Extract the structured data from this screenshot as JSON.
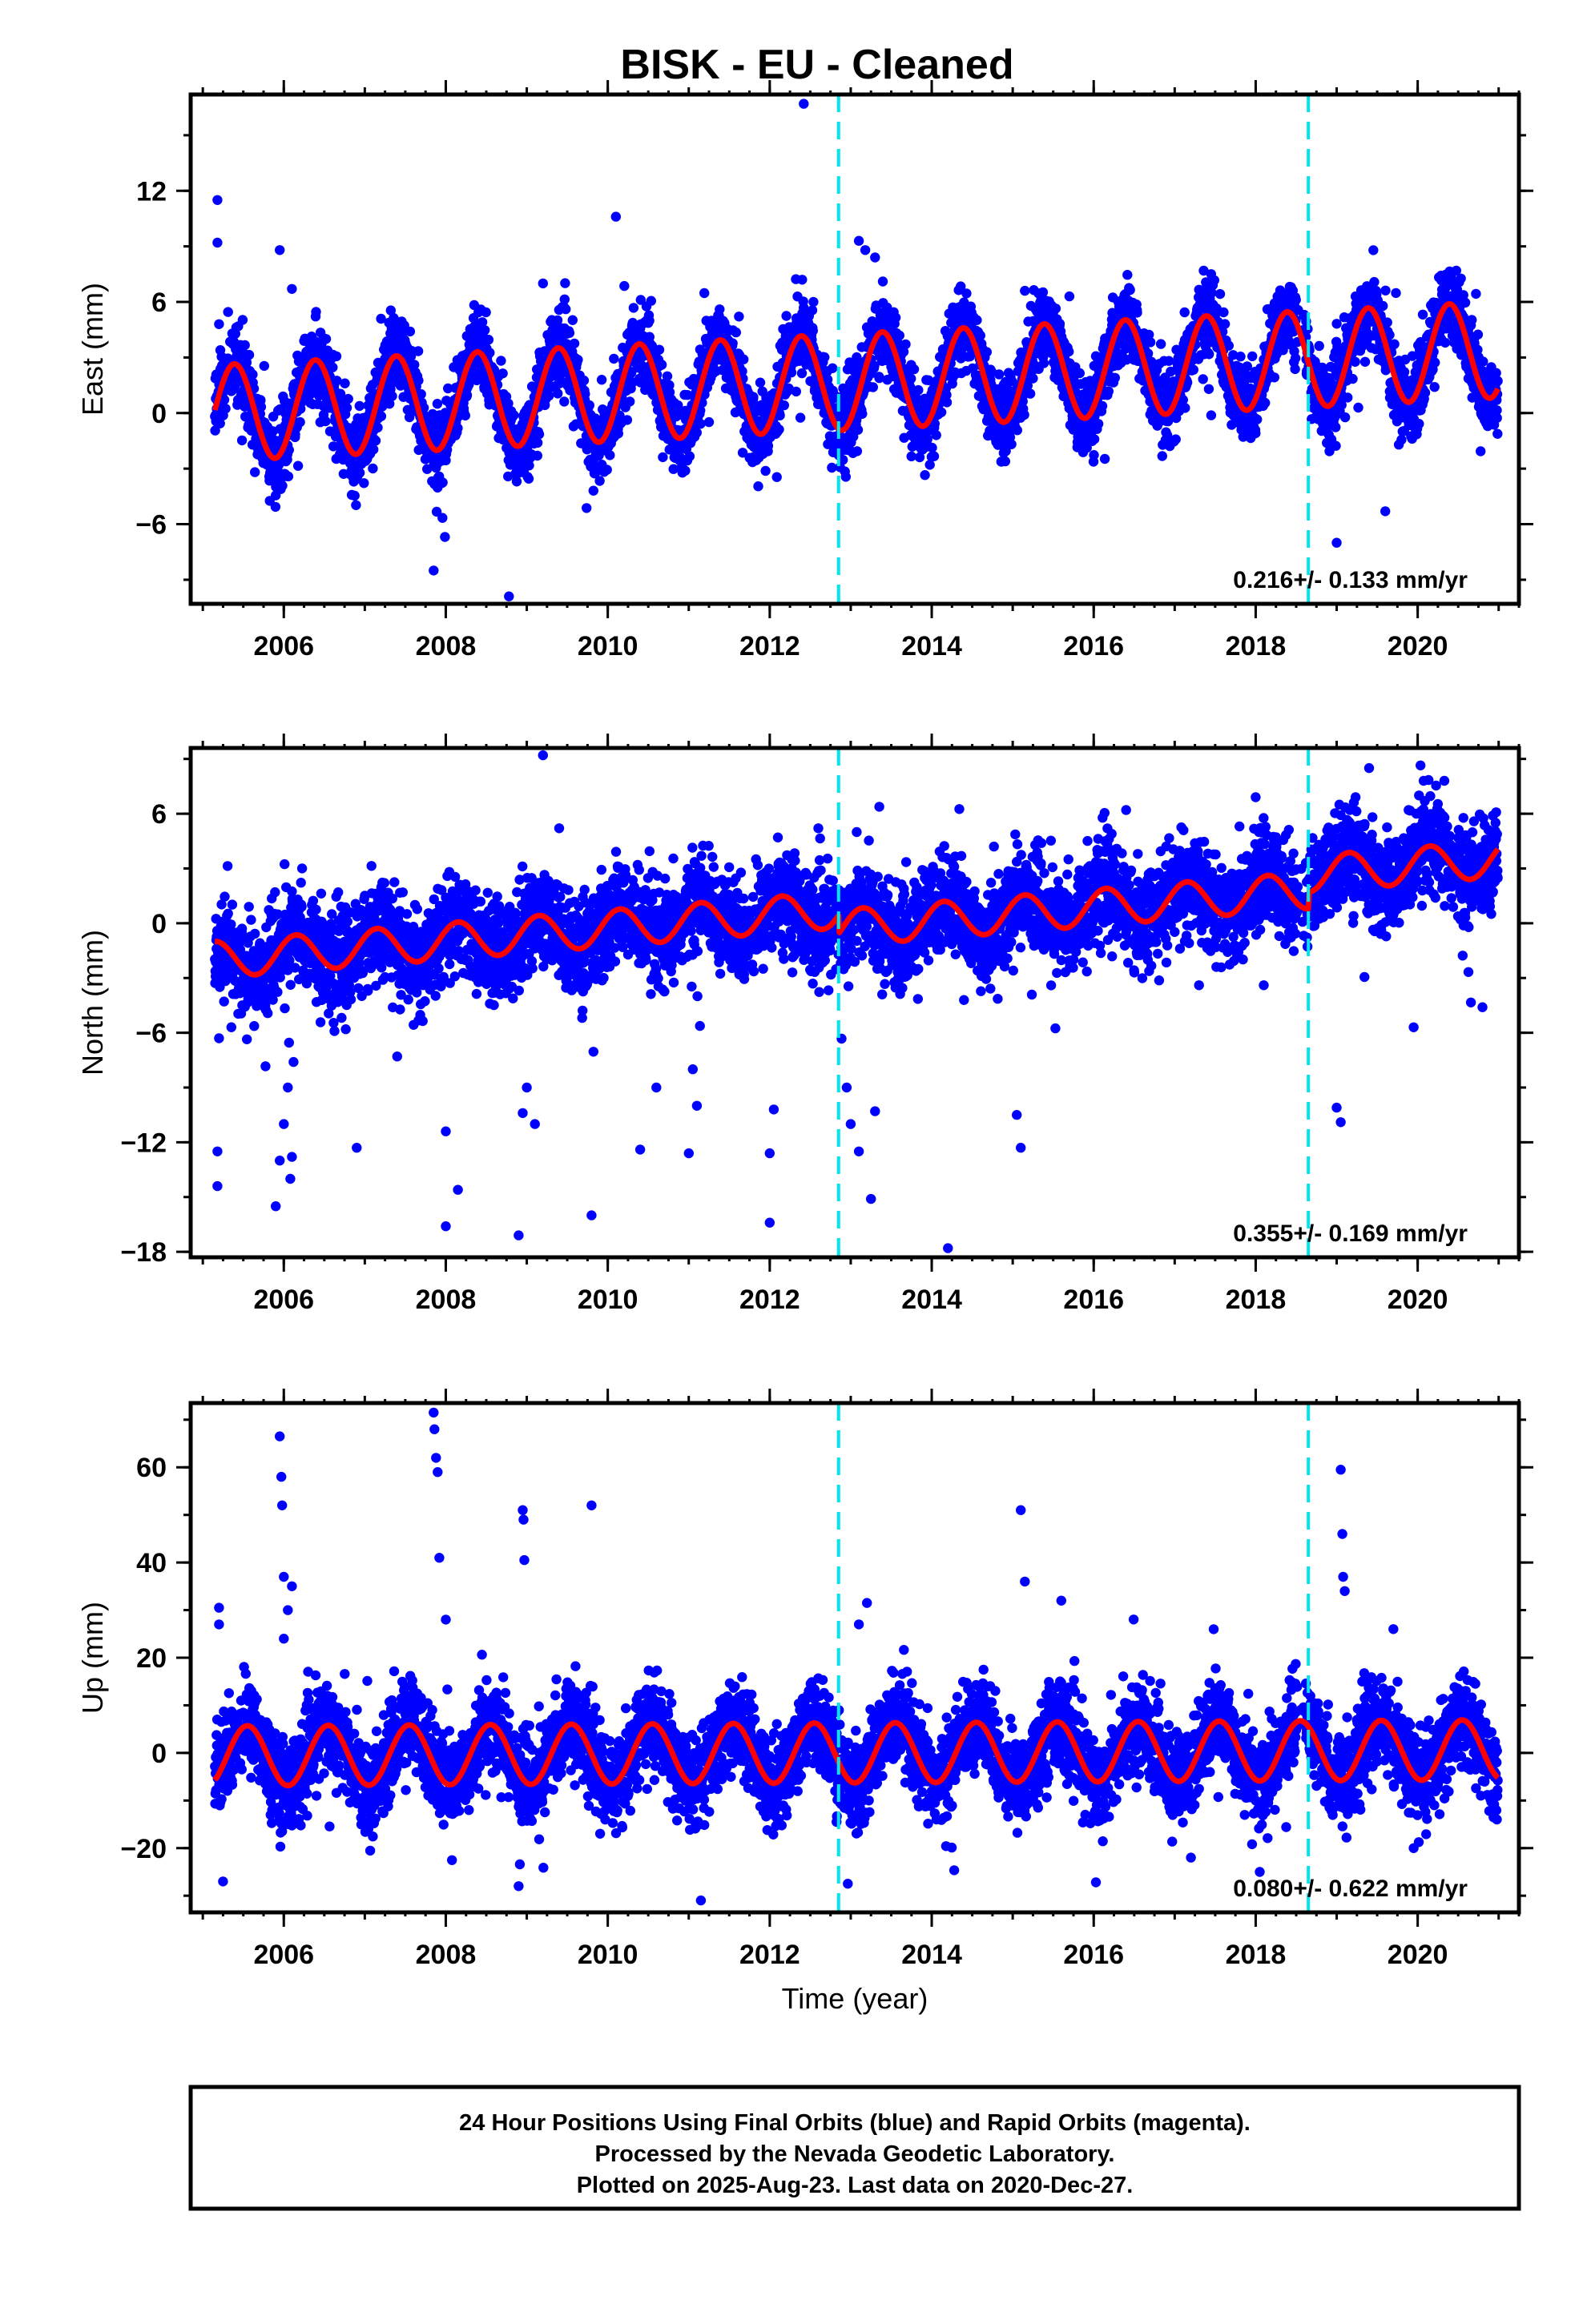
{
  "colors": {
    "final_orbits": "#0000ff",
    "model_fit": "#ff0000",
    "discontinuity": "#00e5ee",
    "frame": "#000000"
  },
  "chart_data": [
    {
      "type": "scatter",
      "title": "BISK  - EU - Cleaned",
      "ylabel": "East (mm)",
      "xlabel": "",
      "xlim": [
        2004.85,
        2021.25
      ],
      "ylim": [
        -10.3,
        17.2
      ],
      "yticks": [
        -6,
        0,
        6,
        12
      ],
      "ytick_labels": [
        "−6",
        "0",
        "6",
        "12"
      ],
      "xticks": [
        2006,
        2008,
        2010,
        2012,
        2014,
        2016,
        2018,
        2020
      ],
      "xtick_labels": [
        "2006",
        "2008",
        "2010",
        "2012",
        "2014",
        "2016",
        "2018",
        "2020"
      ],
      "rate_label": "0.216+/- 0.133 mm/yr",
      "discontinuities": [
        2012.85,
        2018.65
      ],
      "model": {
        "offset": 0.0,
        "trend": 0.216,
        "annual_amp": 2.6,
        "annual_phase": 0.14,
        "trend_ref": 2005.15
      },
      "start": 2005.15,
      "end": 2020.99,
      "scatter_sigma": 1.0,
      "outliers": [
        {
          "x": 2005.18,
          "y": 11.5
        },
        {
          "x": 2005.18,
          "y": 9.2
        },
        {
          "x": 2005.2,
          "y": 4.8
        },
        {
          "x": 2005.95,
          "y": 8.8
        },
        {
          "x": 2006.1,
          "y": 6.7
        },
        {
          "x": 2007.85,
          "y": -8.5
        },
        {
          "x": 2008.78,
          "y": -9.9
        },
        {
          "x": 2009.2,
          "y": 7.0
        },
        {
          "x": 2010.1,
          "y": 10.6
        },
        {
          "x": 2012.42,
          "y": 16.7
        },
        {
          "x": 2012.4,
          "y": 7.2
        },
        {
          "x": 2013.1,
          "y": 9.3
        },
        {
          "x": 2013.18,
          "y": 8.8
        },
        {
          "x": 2013.3,
          "y": 8.4
        },
        {
          "x": 2015.15,
          "y": 6.6
        },
        {
          "x": 2015.7,
          "y": 6.3
        },
        {
          "x": 2017.45,
          "y": 7.5
        },
        {
          "x": 2019.0,
          "y": -7.0
        },
        {
          "x": 2019.6,
          "y": -5.3
        },
        {
          "x": 2020.3,
          "y": 6.4
        }
      ]
    },
    {
      "type": "scatter",
      "title": "",
      "ylabel": "North (mm)",
      "xlabel": "",
      "xlim": [
        2004.85,
        2021.25
      ],
      "ylim": [
        -18.3,
        9.6
      ],
      "yticks": [
        -18,
        -12,
        -6,
        0,
        6
      ],
      "ytick_labels": [
        "−18",
        "−12",
        "−6",
        "0",
        "6"
      ],
      "xticks": [
        2006,
        2008,
        2010,
        2012,
        2014,
        2016,
        2018,
        2020
      ],
      "xtick_labels": [
        "2006",
        "2008",
        "2010",
        "2012",
        "2014",
        "2016",
        "2018",
        "2020"
      ],
      "rate_label": "0.355+/- 0.169 mm/yr",
      "discontinuities": [
        2012.85,
        2018.65
      ],
      "model": {
        "offset": -2.0,
        "trend": 0.355,
        "annual_amp": 1.0,
        "annual_phase": 0.9,
        "trend_ref": 2005.15,
        "jumps": [
          [
            2012.85,
            -1.0
          ],
          [
            2018.65,
            0.9
          ]
        ]
      },
      "start": 2005.15,
      "end": 2020.99,
      "scatter_sigma": 1.3,
      "outliers": [
        {
          "x": 2005.18,
          "y": -12.5
        },
        {
          "x": 2005.18,
          "y": -14.4
        },
        {
          "x": 2005.2,
          "y": -6.3
        },
        {
          "x": 2005.9,
          "y": -15.5
        },
        {
          "x": 2005.95,
          "y": -13.0
        },
        {
          "x": 2006.0,
          "y": -11.0
        },
        {
          "x": 2006.05,
          "y": -9.0
        },
        {
          "x": 2006.1,
          "y": -12.8
        },
        {
          "x": 2006.08,
          "y": -14.0
        },
        {
          "x": 2006.12,
          "y": -7.6
        },
        {
          "x": 2006.9,
          "y": -12.3
        },
        {
          "x": 2007.4,
          "y": -7.3
        },
        {
          "x": 2008.0,
          "y": -11.4
        },
        {
          "x": 2008.0,
          "y": -16.6
        },
        {
          "x": 2008.15,
          "y": -14.6
        },
        {
          "x": 2008.9,
          "y": -17.1
        },
        {
          "x": 2008.95,
          "y": -10.4
        },
        {
          "x": 2009.0,
          "y": -9.0
        },
        {
          "x": 2009.1,
          "y": -11.0
        },
        {
          "x": 2009.2,
          "y": 9.2
        },
        {
          "x": 2009.4,
          "y": 5.2
        },
        {
          "x": 2009.8,
          "y": -16.0
        },
        {
          "x": 2010.4,
          "y": -12.4
        },
        {
          "x": 2010.6,
          "y": -9.0
        },
        {
          "x": 2011.0,
          "y": -12.6
        },
        {
          "x": 2011.1,
          "y": -10.0
        },
        {
          "x": 2011.05,
          "y": -8.0
        },
        {
          "x": 2012.0,
          "y": -16.4
        },
        {
          "x": 2012.0,
          "y": -12.6
        },
        {
          "x": 2012.05,
          "y": -10.2
        },
        {
          "x": 2012.1,
          "y": 4.7
        },
        {
          "x": 2012.6,
          "y": 5.2
        },
        {
          "x": 2012.95,
          "y": -9.0
        },
        {
          "x": 2013.0,
          "y": -11.0
        },
        {
          "x": 2013.1,
          "y": -12.5
        },
        {
          "x": 2013.25,
          "y": -15.1
        },
        {
          "x": 2013.3,
          "y": -10.3
        },
        {
          "x": 2014.2,
          "y": -17.8
        },
        {
          "x": 2015.1,
          "y": -12.3
        },
        {
          "x": 2015.05,
          "y": -10.5
        },
        {
          "x": 2016.4,
          "y": 6.2
        },
        {
          "x": 2017.3,
          "y": -3.4
        },
        {
          "x": 2017.8,
          "y": 5.3
        },
        {
          "x": 2018.1,
          "y": -3.4
        },
        {
          "x": 2018.0,
          "y": 6.9
        },
        {
          "x": 2019.0,
          "y": -10.1
        },
        {
          "x": 2019.05,
          "y": -10.9
        },
        {
          "x": 2019.4,
          "y": 8.5
        },
        {
          "x": 2019.95,
          "y": -5.7
        },
        {
          "x": 2020.8,
          "y": -4.6
        }
      ]
    },
    {
      "type": "scatter",
      "title": "",
      "ylabel": "Up (mm)",
      "xlabel": "Time (year)",
      "xlim": [
        2004.85,
        2021.25
      ],
      "ylim": [
        -33.5,
        73.5
      ],
      "yticks": [
        -20,
        0,
        20,
        40,
        60
      ],
      "ytick_labels": [
        "−20",
        "0",
        "20",
        "40",
        "60"
      ],
      "xticks": [
        2006,
        2008,
        2010,
        2012,
        2014,
        2016,
        2018,
        2020
      ],
      "xtick_labels": [
        "2006",
        "2008",
        "2010",
        "2012",
        "2014",
        "2016",
        "2018",
        "2020"
      ],
      "rate_label": "0.080+/- 0.622 mm/yr",
      "discontinuities": [
        2012.85,
        2018.65
      ],
      "model": {
        "offset": 0.0,
        "trend": 0.08,
        "annual_amp": 6.3,
        "annual_phase": 0.3,
        "trend_ref": 2013.0
      },
      "start": 2005.15,
      "end": 2020.99,
      "scatter_sigma": 4.6,
      "outliers": [
        {
          "x": 2005.2,
          "y": 30.5
        },
        {
          "x": 2005.2,
          "y": 27.0
        },
        {
          "x": 2005.25,
          "y": -27.0
        },
        {
          "x": 2005.95,
          "y": 66.5
        },
        {
          "x": 2005.97,
          "y": 58.0
        },
        {
          "x": 2005.98,
          "y": 52.0
        },
        {
          "x": 2006.0,
          "y": 37.0
        },
        {
          "x": 2006.1,
          "y": 35.0
        },
        {
          "x": 2006.05,
          "y": 30.0
        },
        {
          "x": 2006.0,
          "y": 24.0
        },
        {
          "x": 2007.85,
          "y": 71.5
        },
        {
          "x": 2007.86,
          "y": 68.0
        },
        {
          "x": 2007.88,
          "y": 62.0
        },
        {
          "x": 2007.9,
          "y": 59.0
        },
        {
          "x": 2007.92,
          "y": 41.0
        },
        {
          "x": 2008.0,
          "y": 28.0
        },
        {
          "x": 2008.95,
          "y": 51.0
        },
        {
          "x": 2008.96,
          "y": 49.0
        },
        {
          "x": 2008.97,
          "y": 40.5
        },
        {
          "x": 2008.9,
          "y": -28.0
        },
        {
          "x": 2009.8,
          "y": 52.0
        },
        {
          "x": 2011.15,
          "y": -31.0
        },
        {
          "x": 2013.2,
          "y": 31.5
        },
        {
          "x": 2013.1,
          "y": 27.0
        },
        {
          "x": 2015.1,
          "y": 51.0
        },
        {
          "x": 2015.15,
          "y": 36.0
        },
        {
          "x": 2015.6,
          "y": 32.0
        },
        {
          "x": 2017.2,
          "y": -22.0
        },
        {
          "x": 2018.05,
          "y": -25.0
        },
        {
          "x": 2019.05,
          "y": 59.5
        },
        {
          "x": 2019.07,
          "y": 46.0
        },
        {
          "x": 2019.08,
          "y": 37.0
        },
        {
          "x": 2019.1,
          "y": 34.0
        },
        {
          "x": 2019.7,
          "y": 26.0
        },
        {
          "x": 2019.95,
          "y": -20.0
        }
      ]
    }
  ],
  "footer": {
    "line1": "24 Hour Positions Using Final Orbits (blue) and Rapid Orbits (magenta).",
    "line2": "Processed by the Nevada Geodetic Laboratory.",
    "line3": "Plotted on 2025-Aug-23. Last data on 2020-Dec-27."
  }
}
